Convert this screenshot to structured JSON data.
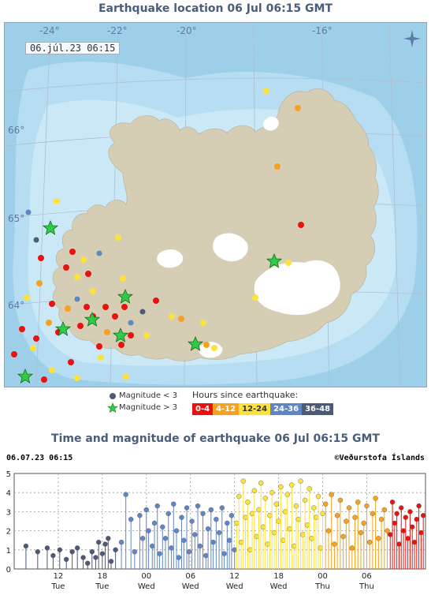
{
  "map": {
    "title": "Earthquake location   06 Jul 06:15 GMT",
    "timestamp": "06.júl.23  06:15",
    "longitude_labels": [
      "-24°",
      "-22°",
      "-20°",
      "-16°"
    ],
    "latitude_labels": [
      "66°",
      "65°",
      "64°"
    ],
    "colors": {
      "sea_deep": "#9ecfe9",
      "sea_shallow": "#cbe8f6",
      "land": "#d6cdb5",
      "ice": "#ffffff",
      "grid": "#aebfd4",
      "h0_4": "#e8130f",
      "h4_12": "#f5a21f",
      "h12_24": "#fde23b",
      "h24_36": "#5f86c4",
      "h36_48": "#4c5a78",
      "star": "#2ecb47"
    },
    "icons": [
      "compass-icon"
    ]
  },
  "legend": {
    "mag_lt3": "Magnitude < 3",
    "mag_gt3": "Magnitude > 3",
    "hours_title": "Hours since earthquake:",
    "bins": [
      "0-4",
      "4-12",
      "12-24",
      "24-36",
      "36-48"
    ]
  },
  "chart": {
    "title": "Time and magnitude of earthquake   06 Jul 06:15 GMT",
    "date_label": "06.07.23 06:15",
    "credit": "©Veðurstofa Íslands"
  },
  "chart_data": {
    "type": "scatter",
    "title": "Time and magnitude of earthquake   06 Jul 06:15 GMT",
    "xlabel": "",
    "ylabel": "",
    "ylim": [
      0,
      5
    ],
    "y_ticks": [
      0,
      1,
      2,
      3,
      4,
      5
    ],
    "x_ticks": [
      {
        "hour": "12",
        "day": "Tue"
      },
      {
        "hour": "18",
        "day": "Tue"
      },
      {
        "hour": "00",
        "day": "Wed"
      },
      {
        "hour": "06",
        "day": "Wed"
      },
      {
        "hour": "12",
        "day": "Wed"
      },
      {
        "hour": "18",
        "day": "Wed"
      },
      {
        "hour": "00",
        "day": "Thu"
      },
      {
        "hour": "06",
        "day": "Thu"
      }
    ],
    "grid": true,
    "series": [
      {
        "name": "36-48",
        "color": "#4c5a78",
        "points": [
          [
            1.6,
            1.2
          ],
          [
            3.2,
            0.9
          ],
          [
            4.5,
            1.1
          ],
          [
            5.3,
            0.7
          ],
          [
            6.2,
            1.0
          ],
          [
            7.1,
            0.5
          ],
          [
            7.9,
            0.9
          ],
          [
            8.6,
            1.1
          ],
          [
            9.4,
            0.6
          ],
          [
            10.0,
            0.3
          ],
          [
            10.6,
            0.9
          ],
          [
            11.1,
            0.6
          ],
          [
            11.5,
            1.4
          ],
          [
            12.0,
            0.8
          ],
          [
            12.4,
            1.3
          ],
          [
            12.8,
            1.6
          ],
          [
            13.2,
            0.4
          ],
          [
            13.8,
            1.0
          ]
        ]
      },
      {
        "name": "24-36",
        "color": "#5f86c4",
        "points": [
          [
            14.6,
            1.4
          ],
          [
            15.2,
            3.9
          ],
          [
            15.9,
            2.6
          ],
          [
            16.4,
            0.9
          ],
          [
            17.1,
            2.8
          ],
          [
            17.5,
            1.6
          ],
          [
            18.0,
            3.1
          ],
          [
            18.3,
            2.0
          ],
          [
            18.8,
            1.2
          ],
          [
            19.1,
            2.4
          ],
          [
            19.5,
            3.3
          ],
          [
            19.8,
            0.8
          ],
          [
            20.2,
            2.2
          ],
          [
            20.6,
            1.6
          ],
          [
            21.0,
            2.9
          ],
          [
            21.4,
            1.1
          ],
          [
            21.7,
            3.4
          ],
          [
            22.1,
            2.0
          ],
          [
            22.4,
            0.6
          ],
          [
            22.8,
            2.7
          ],
          [
            23.1,
            1.5
          ],
          [
            23.5,
            3.2
          ],
          [
            23.8,
            0.9
          ],
          [
            24.2,
            2.5
          ],
          [
            24.6,
            1.8
          ],
          [
            25.0,
            3.3
          ],
          [
            25.3,
            1.2
          ],
          [
            25.7,
            2.9
          ],
          [
            26.1,
            0.7
          ],
          [
            26.4,
            2.1
          ],
          [
            26.8,
            3.1
          ],
          [
            27.1,
            1.4
          ],
          [
            27.5,
            2.6
          ],
          [
            27.9,
            1.9
          ],
          [
            28.3,
            3.2
          ],
          [
            28.6,
            0.8
          ],
          [
            29.0,
            2.4
          ],
          [
            29.3,
            1.5
          ],
          [
            29.6,
            2.8
          ],
          [
            30.0,
            1.0
          ]
        ]
      },
      {
        "name": "12-24",
        "color": "#fde23b",
        "points": [
          [
            30.3,
            2.4
          ],
          [
            30.6,
            3.8
          ],
          [
            30.9,
            1.4
          ],
          [
            31.2,
            4.6
          ],
          [
            31.5,
            2.7
          ],
          [
            31.8,
            3.5
          ],
          [
            32.1,
            1.0
          ],
          [
            32.4,
            2.9
          ],
          [
            32.7,
            4.1
          ],
          [
            33.0,
            1.7
          ],
          [
            33.3,
            3.1
          ],
          [
            33.6,
            4.5
          ],
          [
            33.9,
            2.2
          ],
          [
            34.2,
            3.7
          ],
          [
            34.5,
            1.3
          ],
          [
            34.8,
            2.8
          ],
          [
            35.1,
            4.0
          ],
          [
            35.4,
            1.9
          ],
          [
            35.7,
            3.4
          ],
          [
            36.0,
            2.5
          ],
          [
            36.3,
            4.3
          ],
          [
            36.6,
            1.5
          ],
          [
            36.9,
            3.0
          ],
          [
            37.2,
            3.9
          ],
          [
            37.5,
            2.1
          ],
          [
            37.8,
            4.4
          ],
          [
            38.1,
            1.2
          ],
          [
            38.4,
            3.3
          ],
          [
            38.7,
            2.6
          ],
          [
            39.0,
            4.6
          ],
          [
            39.3,
            1.8
          ],
          [
            39.6,
            3.6
          ],
          [
            39.9,
            2.3
          ],
          [
            40.2,
            4.2
          ],
          [
            40.5,
            1.6
          ],
          [
            40.8,
            3.2
          ],
          [
            41.1,
            2.7
          ],
          [
            41.4,
            3.8
          ],
          [
            41.7,
            1.1
          ],
          [
            42.0,
            2.9
          ]
        ]
      },
      {
        "name": "4-12",
        "color": "#f5a21f",
        "points": [
          [
            42.4,
            3.4
          ],
          [
            42.8,
            2.0
          ],
          [
            43.2,
            3.9
          ],
          [
            43.6,
            1.3
          ],
          [
            44.0,
            2.8
          ],
          [
            44.4,
            3.6
          ],
          [
            44.8,
            1.7
          ],
          [
            45.2,
            2.5
          ],
          [
            45.6,
            3.2
          ],
          [
            46.0,
            1.1
          ],
          [
            46.4,
            2.7
          ],
          [
            46.8,
            3.5
          ],
          [
            47.2,
            1.9
          ],
          [
            47.6,
            2.4
          ],
          [
            48.0,
            3.3
          ],
          [
            48.4,
            1.4
          ],
          [
            48.8,
            2.9
          ],
          [
            49.2,
            3.7
          ],
          [
            49.6,
            1.6
          ],
          [
            50.0,
            2.6
          ],
          [
            50.4,
            3.1
          ],
          [
            50.8,
            2.0
          ]
        ]
      },
      {
        "name": "0-4",
        "color": "#e8130f",
        "points": [
          [
            51.2,
            1.8
          ],
          [
            51.5,
            3.5
          ],
          [
            51.8,
            2.4
          ],
          [
            52.1,
            2.9
          ],
          [
            52.4,
            1.3
          ],
          [
            52.7,
            3.2
          ],
          [
            53.0,
            2.0
          ],
          [
            53.3,
            2.7
          ],
          [
            53.6,
            1.6
          ],
          [
            53.9,
            3.0
          ],
          [
            54.2,
            2.2
          ],
          [
            54.5,
            1.4
          ],
          [
            54.8,
            2.6
          ],
          [
            55.1,
            3.3
          ],
          [
            55.4,
            1.9
          ],
          [
            55.7,
            2.8
          ]
        ]
      }
    ]
  }
}
